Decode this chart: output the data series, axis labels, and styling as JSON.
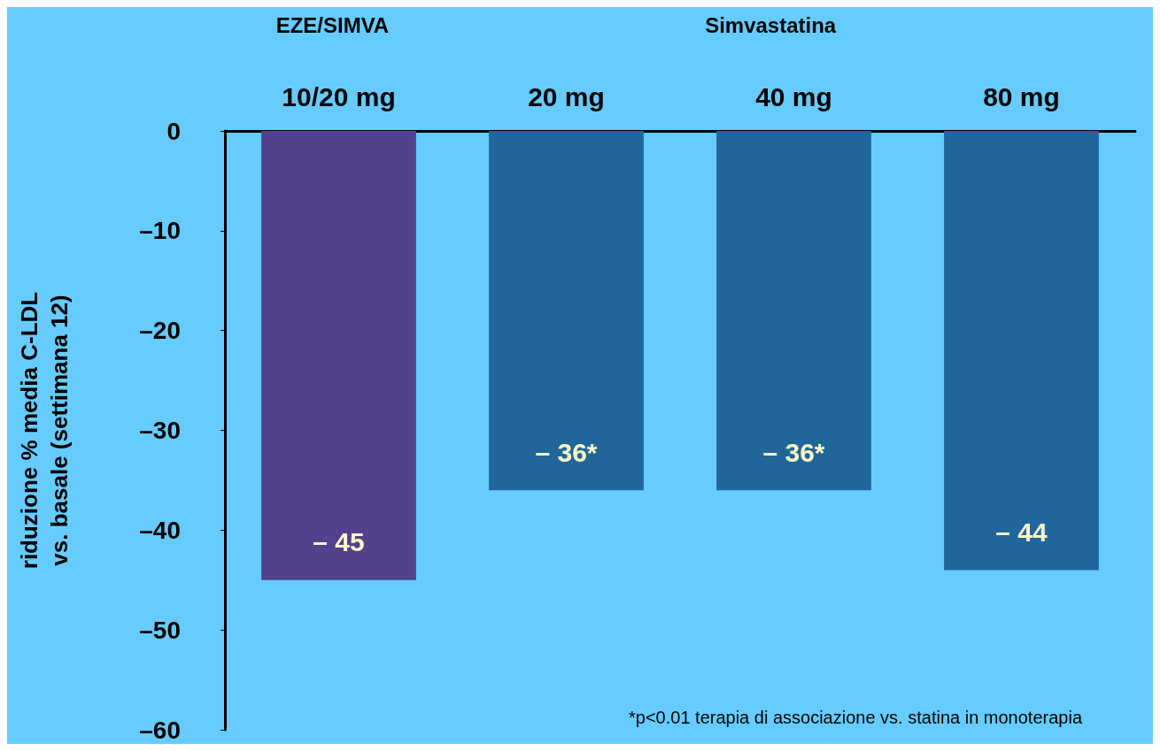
{
  "chart_data": {
    "type": "bar",
    "ylabel": "riduzione % media C-LDL\nvs. basale (settimana 12)",
    "categories": [
      "10/20 mg",
      "20 mg",
      "40 mg",
      "80 mg"
    ],
    "values": [
      -45,
      -36,
      -36,
      -44
    ],
    "colors": [
      "#52418c",
      "#20669a",
      "#20669a",
      "#20669a"
    ],
    "value_labels": [
      "– 45",
      "– 36*",
      "– 36*",
      "– 44"
    ],
    "ylim": [
      -60,
      0
    ],
    "yticks": [
      {
        "value": 0,
        "label": "0"
      },
      {
        "value": -10,
        "label": "–10"
      },
      {
        "value": -20,
        "label": "–20"
      },
      {
        "value": -30,
        "label": "–30"
      },
      {
        "value": -40,
        "label": "–40"
      },
      {
        "value": -50,
        "label": "–50"
      },
      {
        "value": -60,
        "label": "–60"
      }
    ],
    "annotations": [
      "EZE/SIMVA",
      "Simvastatina",
      "*p<0.01 terapia di associazione vs. statina in monoterapia"
    ],
    "grid": false
  }
}
